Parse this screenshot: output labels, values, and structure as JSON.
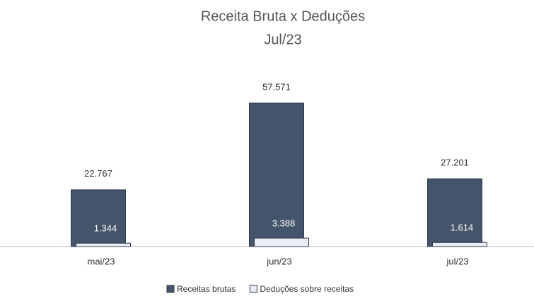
{
  "chart_data": {
    "type": "bar",
    "title": "Receita Bruta x Deduções",
    "subtitle": "Jul/23",
    "categories": [
      "mai/23",
      "jun/23",
      "jul/23"
    ],
    "series": [
      {
        "name": "Receitas brutas",
        "color": "#44546a",
        "values": [
          22767,
          57571,
          27201
        ],
        "value_labels": [
          "22.767",
          "57.571",
          "27.201"
        ]
      },
      {
        "name": "Deduções sobre receitas",
        "color": "#e9edf4",
        "values": [
          1344,
          3388,
          1614
        ],
        "value_labels": [
          "1.344",
          "3.388",
          "1.614"
        ]
      }
    ]
  }
}
